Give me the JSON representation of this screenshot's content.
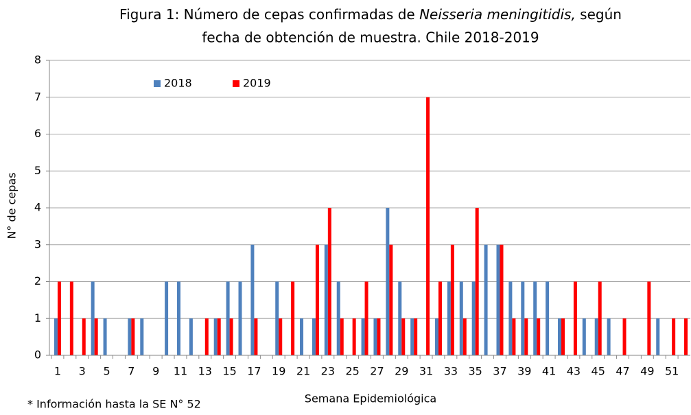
{
  "chart_data": {
    "type": "bar",
    "title": {
      "line1_start": "Figura 1: Número de cepas confirmadas de ",
      "line1_italic": "Neisseria meningitidis,",
      "line1_end": " según",
      "line2": "fecha de obtención de muestra. Chile 2018-2019"
    },
    "xlabel": "Semana Epidemiológica",
    "ylabel": "N° de cepas",
    "footnote": "* Información hasta la SE N° 52",
    "categories": [
      1,
      null,
      3,
      null,
      5,
      null,
      7,
      null,
      9,
      null,
      11,
      null,
      13,
      null,
      15,
      null,
      17,
      null,
      19,
      null,
      21,
      null,
      23,
      null,
      25,
      null,
      27,
      null,
      29,
      null,
      31,
      null,
      33,
      null,
      35,
      null,
      37,
      null,
      39,
      null,
      41,
      null,
      43,
      null,
      45,
      null,
      47,
      null,
      49,
      null,
      51,
      null
    ],
    "series": [
      {
        "name": "2018",
        "color": "#4f81bd",
        "values": [
          1,
          0,
          0,
          2,
          1,
          0,
          1,
          1,
          0,
          2,
          2,
          1,
          0,
          1,
          2,
          2,
          3,
          0,
          2,
          0,
          1,
          1,
          3,
          2,
          0,
          1,
          1,
          4,
          2,
          1,
          0,
          1,
          2,
          2,
          2,
          3,
          3,
          2,
          2,
          2,
          2,
          1,
          0,
          1,
          1,
          1,
          0,
          0,
          0,
          1,
          0,
          0
        ]
      },
      {
        "name": "2019",
        "color": "#ff0000",
        "values": [
          2,
          2,
          1,
          1,
          0,
          0,
          1,
          0,
          0,
          0,
          0,
          0,
          1,
          1,
          1,
          0,
          1,
          0,
          1,
          2,
          0,
          3,
          4,
          1,
          1,
          2,
          1,
          3,
          1,
          1,
          7,
          2,
          3,
          1,
          4,
          0,
          3,
          1,
          1,
          1,
          0,
          1,
          2,
          0,
          2,
          0,
          1,
          0,
          2,
          0,
          1,
          1
        ]
      }
    ],
    "ylim": [
      0,
      8
    ],
    "yticks": [
      0,
      1,
      2,
      3,
      4,
      5,
      6,
      7,
      8
    ],
    "grid": true,
    "legend": "top-left"
  }
}
